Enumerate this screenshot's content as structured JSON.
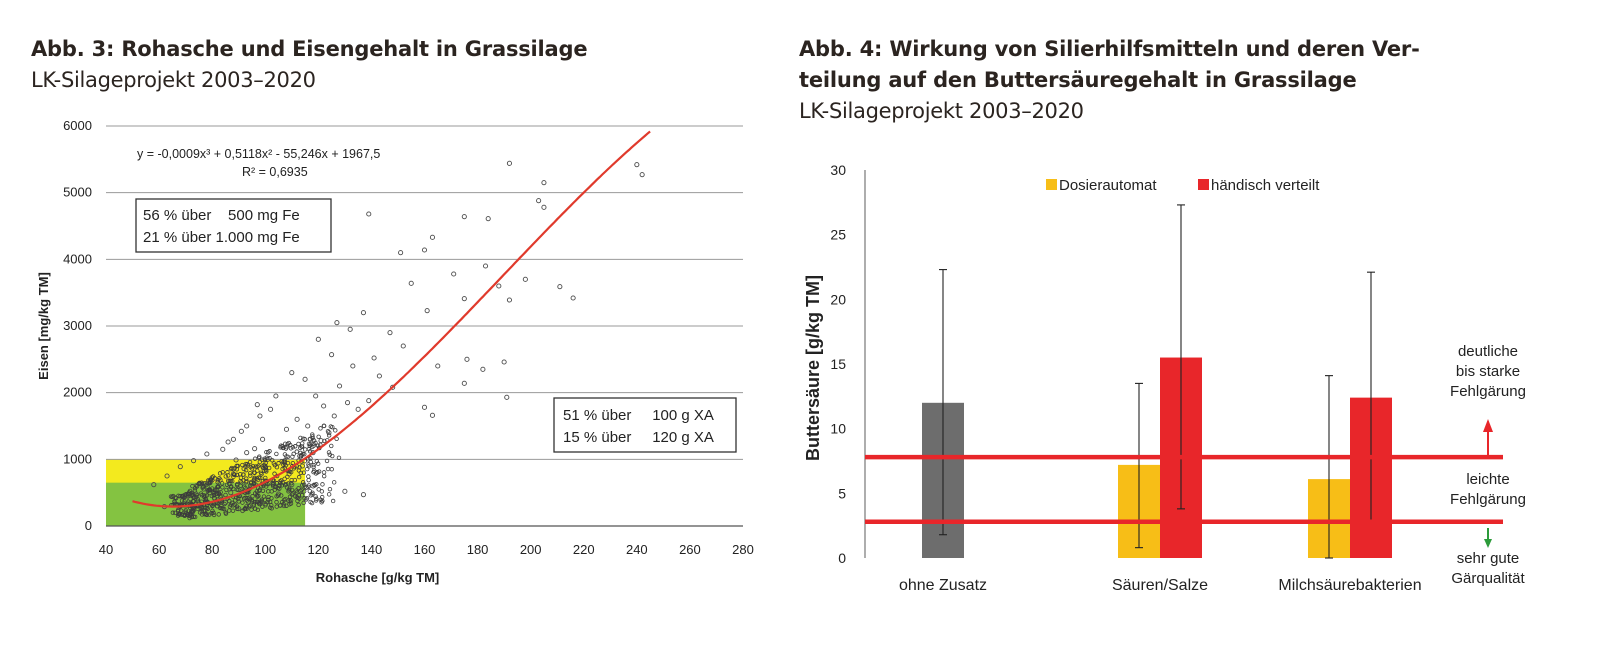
{
  "charts": {
    "abb3": {
      "title": "Abb. 3: Rohasche und Eisengehalt in Grassilage",
      "subtitle": "LK-Silageprojekt 2003–2020",
      "equation": "y = -0,0009x³ + 0,5118x² - 55,246x + 1967,5",
      "r2": "R² = 0,6935",
      "box_fe": [
        "56 % über    500 mg Fe",
        "21 % über 1.000 mg Fe"
      ],
      "box_xa": [
        "51 % über     100 g XA",
        "15 % über     120 g XA"
      ]
    },
    "abb4": {
      "title_line1": "Abb. 4: Wirkung von Silierhilfsmitteln und deren Ver-",
      "title_line2": "teilung auf den Buttersäuregehalt in Grassilage",
      "subtitle": "LK-Silageprojekt 2003–2020",
      "zones": {
        "top": [
          "deutliche",
          "bis starke",
          "Fehlgärung"
        ],
        "mid": [
          "leichte",
          "Fehlgärung"
        ],
        "low": [
          "sehr gute",
          "Gärqualität"
        ]
      }
    }
  },
  "chart_data": [
    {
      "type": "scatter",
      "title": "Abb. 3: Rohasche und Eisengehalt in Grassilage",
      "xlabel": "Rohasche [g/kg TM]",
      "ylabel": "Eisen [mg/kg TM]",
      "xlim": [
        40,
        280
      ],
      "ylim": [
        0,
        6000
      ],
      "xticks": [
        40,
        60,
        80,
        100,
        120,
        140,
        160,
        180,
        200,
        220,
        240,
        260,
        280
      ],
      "yticks": [
        0,
        1000,
        2000,
        3000,
        4000,
        5000,
        6000
      ],
      "grid": true,
      "trendline": {
        "type": "polynomial",
        "coefficients": [
          -0.0009,
          0.5118,
          -55.246,
          1967.5
        ],
        "x_range": [
          50,
          245
        ],
        "color": "#e03a2c"
      },
      "threshold_regions": [
        {
          "x_to": 115,
          "y_to": 1000,
          "color": "#f3ea1e"
        },
        {
          "x_to": 115,
          "y_to": 650,
          "color": "#84c341"
        }
      ],
      "points": [
        [
          192,
          5440
        ],
        [
          205,
          5150
        ],
        [
          203,
          4880
        ],
        [
          205,
          4780
        ],
        [
          240,
          5420
        ],
        [
          242,
          5270
        ],
        [
          139,
          4680
        ],
        [
          175,
          4640
        ],
        [
          163,
          4330
        ],
        [
          160,
          4140
        ],
        [
          184,
          4610
        ],
        [
          151,
          4100
        ],
        [
          183,
          3900
        ],
        [
          171,
          3780
        ],
        [
          198,
          3700
        ],
        [
          188,
          3600
        ],
        [
          211,
          3590
        ],
        [
          216,
          3420
        ],
        [
          192,
          3390
        ],
        [
          175,
          3410
        ],
        [
          155,
          3640
        ],
        [
          161,
          3230
        ],
        [
          190,
          2460
        ],
        [
          182,
          2350
        ],
        [
          176,
          2500
        ],
        [
          165,
          2400
        ],
        [
          175,
          2140
        ],
        [
          160,
          1780
        ],
        [
          191,
          1930
        ],
        [
          163,
          1660
        ],
        [
          139,
          1880
        ],
        [
          137,
          3200
        ],
        [
          127,
          3050
        ],
        [
          120,
          2800
        ],
        [
          147,
          2900
        ],
        [
          152,
          2700
        ],
        [
          133,
          2400
        ],
        [
          132,
          2950
        ],
        [
          141,
          2520
        ],
        [
          148,
          2080
        ],
        [
          115,
          2200
        ],
        [
          125,
          2570
        ],
        [
          110,
          2300
        ],
        [
          104,
          1950
        ],
        [
          98,
          1650
        ],
        [
          93,
          1500
        ],
        [
          88,
          1300
        ],
        [
          84,
          1150
        ],
        [
          78,
          1080
        ],
        [
          73,
          980
        ],
        [
          68,
          890
        ],
        [
          63,
          750
        ],
        [
          58,
          620
        ],
        [
          137,
          470
        ],
        [
          130,
          520
        ],
        [
          118,
          600
        ],
        [
          112,
          1600
        ],
        [
          108,
          1450
        ],
        [
          122,
          1800
        ],
        [
          128,
          2100
        ],
        [
          119,
          1950
        ],
        [
          135,
          1750
        ],
        [
          143,
          2250
        ],
        [
          97,
          1820
        ],
        [
          91,
          1420
        ],
        [
          86,
          1260
        ],
        [
          102,
          1750
        ],
        [
          96,
          1160
        ],
        [
          92,
          860
        ],
        [
          88,
          780
        ],
        [
          83,
          690
        ],
        [
          79,
          540
        ],
        [
          74,
          480
        ],
        [
          70,
          390
        ],
        [
          66,
          330
        ],
        [
          62,
          290
        ],
        [
          82,
          300
        ],
        [
          90,
          260
        ],
        [
          98,
          330
        ],
        [
          105,
          480
        ],
        [
          110,
          620
        ],
        [
          114,
          900
        ],
        [
          118,
          1100
        ],
        [
          121,
          1280
        ],
        [
          124,
          1400
        ],
        [
          100,
          870
        ],
        [
          95,
          600
        ],
        [
          87,
          500
        ],
        [
          81,
          410
        ],
        [
          76,
          360
        ],
        [
          101,
          1000
        ],
        [
          106,
          1200
        ],
        [
          116,
          1500
        ],
        [
          126,
          1650
        ],
        [
          131,
          1850
        ],
        [
          109,
          780
        ],
        [
          113,
          1050
        ],
        [
          103,
          640
        ],
        [
          94,
          420
        ],
        [
          85,
          350
        ],
        [
          89,
          990
        ],
        [
          93,
          1100
        ],
        [
          99,
          1300
        ],
        [
          107,
          960
        ],
        [
          117,
          1300
        ]
      ]
    },
    {
      "type": "bar",
      "title": "Abb. 4: Wirkung von Silierhilfsmitteln und deren Verteilung auf den Buttersäuregehalt in Grassilage",
      "xlabel": "",
      "ylabel": "Buttersäure [g/kg TM]",
      "ylim": [
        0,
        30
      ],
      "yticks": [
        0,
        5,
        10,
        15,
        20,
        25,
        30
      ],
      "categories": [
        "ohne Zusatz",
        "Säuren/Salze",
        "Milchsäurebakterien"
      ],
      "series": [
        {
          "name": "ohne Zusatz",
          "color": "#6d6d6d",
          "values": [
            12.0,
            null,
            null
          ],
          "error_low": [
            1.8,
            null,
            null
          ],
          "error_high": [
            22.3,
            null,
            null
          ]
        },
        {
          "name": "Dosierautomat",
          "color": "#f7be17",
          "values": [
            null,
            7.2,
            6.1
          ],
          "error_low": [
            null,
            0.8,
            0.0
          ],
          "error_high": [
            null,
            13.5,
            14.1
          ]
        },
        {
          "name": "händisch verteilt",
          "color": "#e8262a",
          "values": [
            null,
            15.5,
            12.4
          ],
          "error_low": [
            null,
            3.8,
            2.8
          ],
          "error_high": [
            null,
            27.3,
            22.1
          ]
        }
      ],
      "legend": [
        "Dosierautomat",
        "händisch verteilt"
      ],
      "legend_position": "top",
      "reference_lines": [
        {
          "y": 7.8,
          "color": "#e8262a"
        },
        {
          "y": 2.8,
          "color": "#e8262a"
        }
      ]
    }
  ]
}
